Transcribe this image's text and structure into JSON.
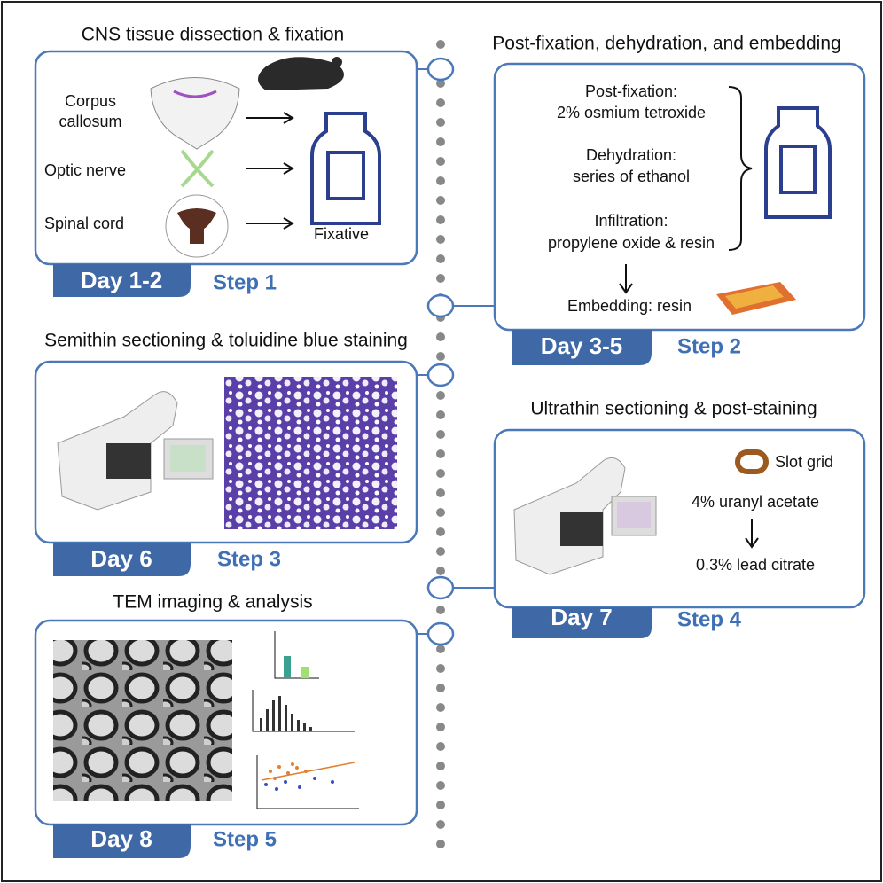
{
  "steps": [
    {
      "title": "CNS tissue dissection & fixation",
      "day": "Day 1-2",
      "step": "Step 1",
      "labels": [
        "Corpus",
        "callosum",
        "Optic nerve",
        "Spinal cord",
        "Fixative"
      ]
    },
    {
      "title": "Post-fixation, dehydration, and embedding",
      "day": "Day 3-5",
      "step": "Step 2",
      "labels": [
        "Post-fixation:",
        "2% osmium tetroxide",
        "Dehydration:",
        "series of ethanol",
        "Infiltration:",
        "propylene oxide & resin",
        "Embedding: resin"
      ]
    },
    {
      "title": "Semithin sectioning & toluidine blue staining",
      "day": "Day 6",
      "step": "Step 3"
    },
    {
      "title": "Ultrathin sectioning & post-staining",
      "day": "Day 7",
      "step": "Step 4",
      "labels": [
        "Slot grid",
        "4% uranyl acetate",
        "0.3% lead citrate"
      ]
    },
    {
      "title": "TEM imaging & analysis",
      "day": "Day 8",
      "step": "Step 5"
    }
  ]
}
